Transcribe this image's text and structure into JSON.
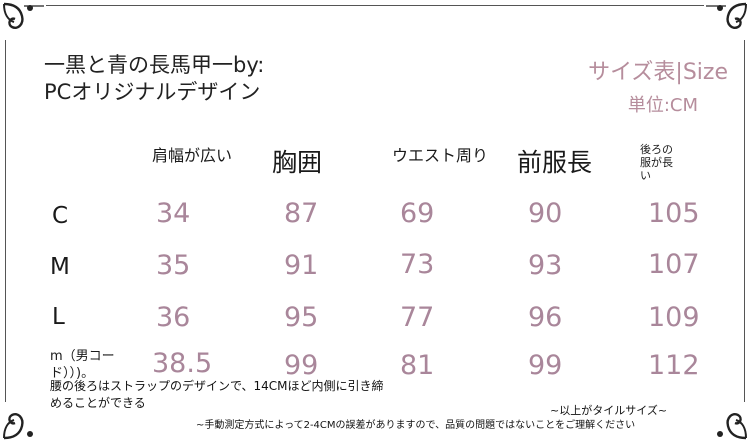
{
  "product_title_line1": "一黒と青の長馬甲一by:",
  "product_title_line2": "PCオリジナルデザイン",
  "size_table_title": "サイズ表|Size",
  "unit_label": "単位:CM",
  "colors": {
    "value": "#a9869a",
    "title": "#b68d9c",
    "text": "#1a1a1a"
  },
  "table": {
    "headers": [
      "肩幅が広い",
      "胸囲",
      "ウエスト周り",
      "前服長",
      "後ろの服が長い"
    ],
    "rows": [
      {
        "label": "C",
        "values": [
          "34",
          "87",
          "69",
          "90",
          "105"
        ]
      },
      {
        "label": "M",
        "values": [
          "35",
          "91",
          "73",
          "93",
          "107"
        ]
      },
      {
        "label": "L",
        "values": [
          "36",
          "95",
          "77",
          "96",
          "109"
        ]
      },
      {
        "label": "m（男コード））)。",
        "values": [
          "38.5",
          "99",
          "81",
          "99",
          "112"
        ]
      }
    ]
  },
  "note_waist": "腰の後ろはストラップのデザインで、14CMほど内側に引き締めることができる",
  "note_tile": "~以上がタイルサイズ~",
  "note_measure": "~手動測定方式によって2-4CMの誤差がありますので、品質の問題ではないことをご理解ください"
}
